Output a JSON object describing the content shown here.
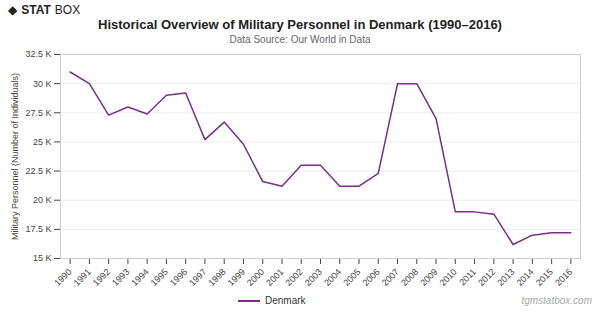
{
  "chart_data": {
    "type": "line",
    "title": "Historical Overview of Military Personnel in Denmark (1990–2016)",
    "subtitle": "Data Source: Our World in Data",
    "ylabel": "Military Personnel (Number of Individuals)",
    "x": [
      1990,
      1991,
      1992,
      1993,
      1994,
      1995,
      1996,
      1997,
      1998,
      1999,
      2000,
      2001,
      2002,
      2003,
      2004,
      2005,
      2006,
      2007,
      2008,
      2009,
      2010,
      2011,
      2012,
      2013,
      2014,
      2015,
      2016
    ],
    "series": [
      {
        "name": "Denmark",
        "color": "#7b2d8b",
        "values": [
          31000,
          30000,
          27300,
          28000,
          27400,
          29000,
          29200,
          25200,
          26700,
          24800,
          21600,
          21200,
          23000,
          23000,
          21200,
          21200,
          22300,
          30000,
          30000,
          27000,
          19000,
          19000,
          18800,
          16200,
          17000,
          17200,
          17200
        ]
      }
    ],
    "xlim": [
      1989.5,
      2016.5
    ],
    "xticks": [
      1990,
      1991,
      1992,
      1993,
      1994,
      1995,
      1996,
      1997,
      1998,
      1999,
      2000,
      2001,
      2002,
      2003,
      2004,
      2005,
      2006,
      2007,
      2008,
      2009,
      2010,
      2011,
      2012,
      2013,
      2014,
      2015,
      2016
    ],
    "ylim": [
      15000,
      32500
    ],
    "yticks": [
      {
        "value": 15000,
        "label": "15 K"
      },
      {
        "value": 17500,
        "label": "17.5 K"
      },
      {
        "value": 20000,
        "label": "20 K"
      },
      {
        "value": 22500,
        "label": "22.5 K"
      },
      {
        "value": 25000,
        "label": "25 K"
      },
      {
        "value": 27500,
        "label": "27.5 K"
      },
      {
        "value": 30000,
        "label": "30 K"
      },
      {
        "value": 32500,
        "label": "32.5 K"
      }
    ],
    "grid": true,
    "legend": "bottom",
    "annotations": [
      "◆",
      "STAT",
      "BOX",
      "tgmstatbox.com"
    ]
  }
}
